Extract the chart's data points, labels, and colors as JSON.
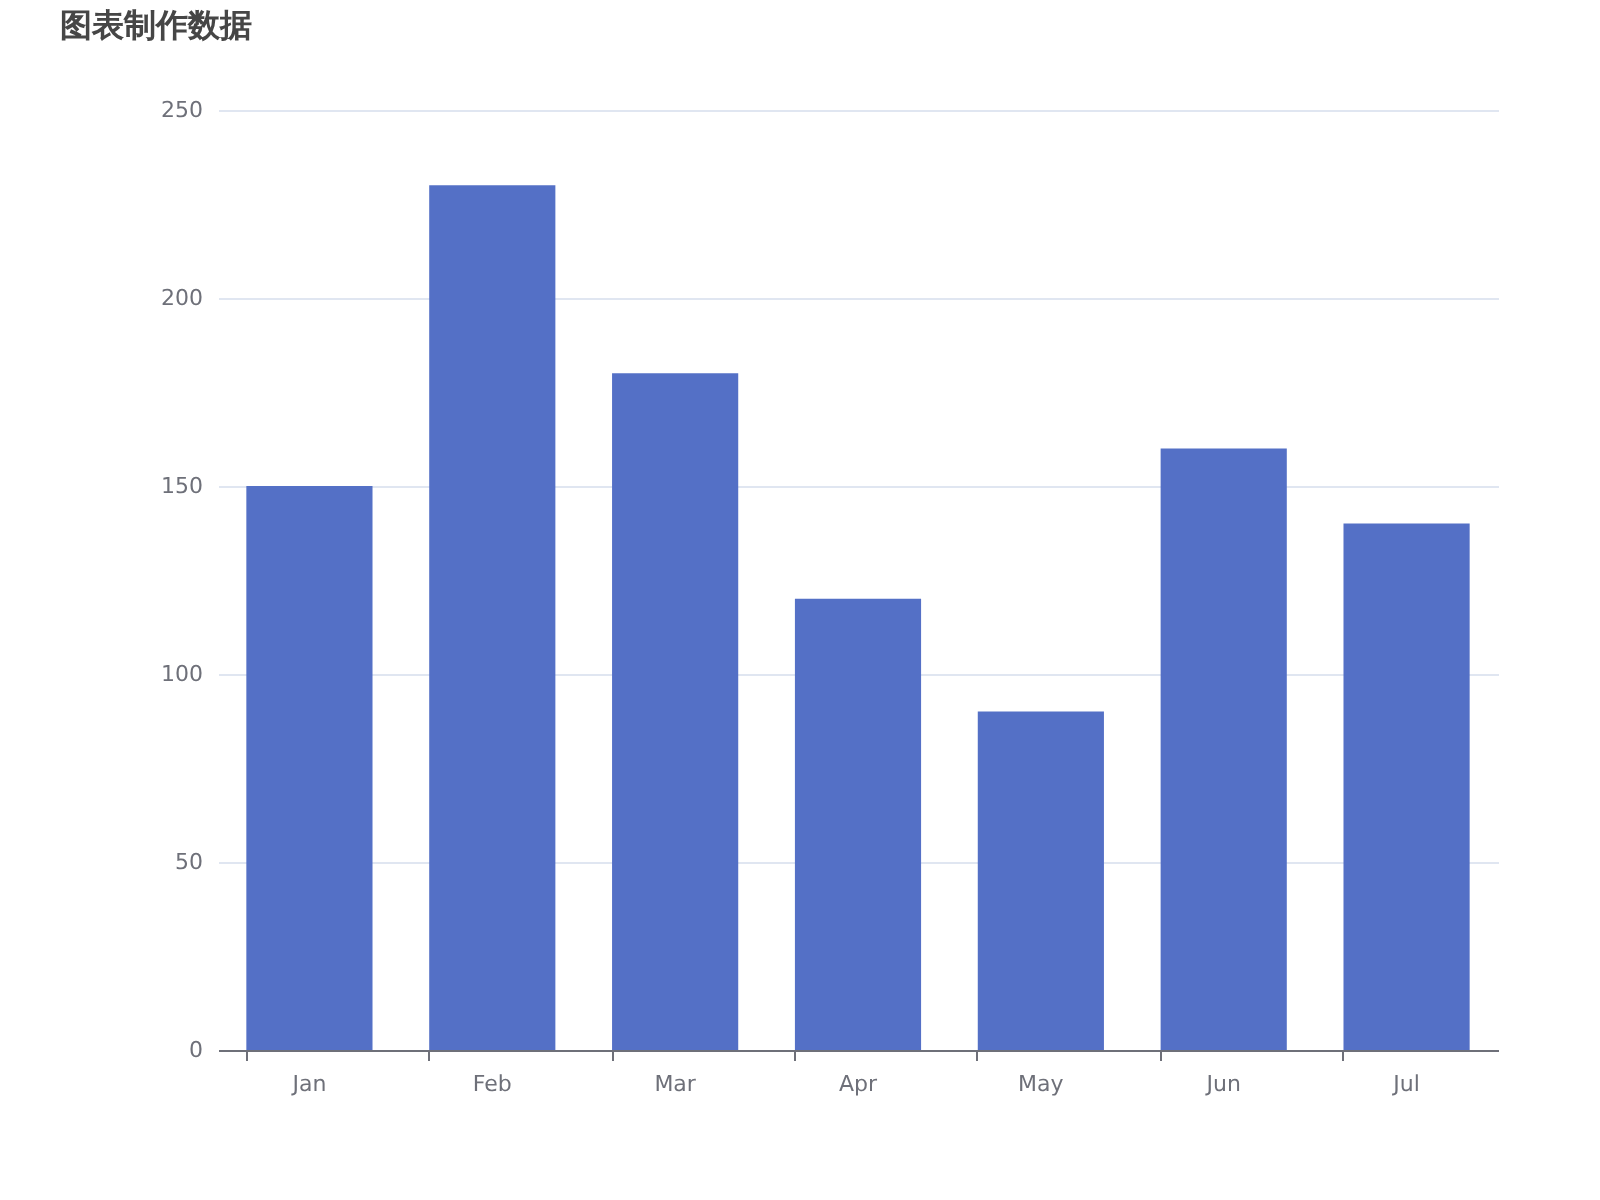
{
  "chart_data": {
    "type": "bar",
    "title": "图表制作数据",
    "categories": [
      "Jan",
      "Feb",
      "Mar",
      "Apr",
      "May",
      "Jun",
      "Jul"
    ],
    "values": [
      150,
      230,
      180,
      120,
      90,
      160,
      140
    ],
    "color": "#5470c6",
    "ylim": [
      0,
      250
    ],
    "yticks": [
      0,
      50,
      100,
      150,
      200,
      250
    ],
    "grid": "y"
  }
}
